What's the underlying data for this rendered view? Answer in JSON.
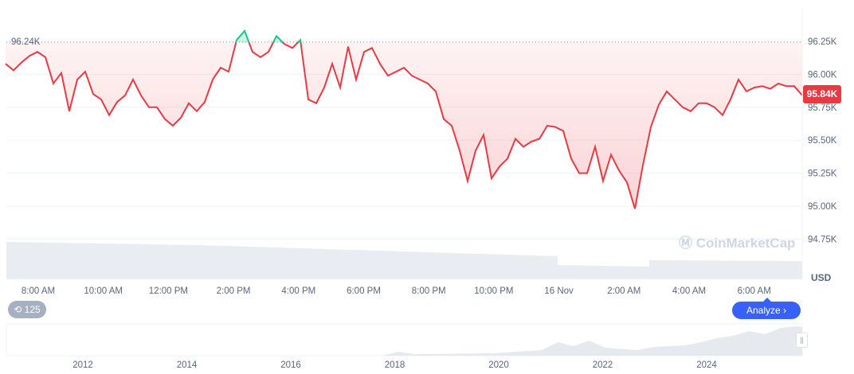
{
  "chart_data": {
    "type": "line",
    "currency": "USD",
    "baseline": 96.24,
    "baseline_label": "96.24K",
    "current_price_label": "95.84K",
    "ylim": [
      94.65,
      96.45
    ],
    "y_ticks": [
      {
        "v": 96.25,
        "label": "96.25K"
      },
      {
        "v": 96.0,
        "label": "96.00K"
      },
      {
        "v": 95.75,
        "label": "95.75K"
      },
      {
        "v": 95.5,
        "label": "95.50K"
      },
      {
        "v": 95.25,
        "label": "95.25K"
      },
      {
        "v": 95.0,
        "label": "95.00K"
      },
      {
        "v": 94.75,
        "label": "94.75K"
      }
    ],
    "x_ticks": [
      "8:00 AM",
      "10:00 AM",
      "12:00 PM",
      "2:00 PM",
      "4:00 PM",
      "6:00 PM",
      "8:00 PM",
      "10:00 PM",
      "16 Nov",
      "2:00 AM",
      "4:00 AM",
      "6:00 AM"
    ],
    "x_interval_minutes": 15,
    "values_k": [
      96.08,
      96.03,
      96.09,
      96.14,
      96.17,
      96.13,
      95.93,
      96.01,
      95.72,
      95.96,
      96.02,
      95.85,
      95.81,
      95.69,
      95.79,
      95.84,
      95.96,
      95.84,
      95.75,
      95.75,
      95.66,
      95.61,
      95.67,
      95.78,
      95.72,
      95.79,
      95.96,
      96.05,
      96.02,
      96.26,
      96.33,
      96.17,
      96.13,
      96.17,
      96.29,
      96.23,
      96.2,
      96.26,
      95.81,
      95.78,
      95.9,
      96.08,
      95.9,
      96.21,
      95.96,
      96.17,
      96.2,
      96.08,
      95.99,
      96.02,
      96.05,
      95.99,
      95.96,
      95.93,
      95.87,
      95.66,
      95.61,
      95.42,
      95.19,
      95.42,
      95.54,
      95.21,
      95.3,
      95.36,
      95.51,
      95.45,
      95.49,
      95.51,
      95.61,
      95.6,
      95.57,
      95.36,
      95.25,
      95.25,
      95.45,
      95.19,
      95.39,
      95.27,
      95.18,
      94.98,
      95.31,
      95.6,
      95.77,
      95.87,
      95.81,
      95.75,
      95.72,
      95.78,
      95.78,
      95.75,
      95.69,
      95.81,
      95.96,
      95.87,
      95.9,
      95.91,
      95.89,
      95.93,
      95.91,
      95.91,
      95.84
    ],
    "colors": {
      "down": "#ea3943",
      "up": "#16c784",
      "accent": "#3861fb"
    },
    "navigator_years": [
      "2012",
      "2014",
      "2016",
      "2018",
      "2020",
      "2022",
      "2024"
    ]
  },
  "ui": {
    "usd": "USD",
    "history_count": "125",
    "analyze": "Analyze ›",
    "watermark": "CoinMarketCap"
  }
}
